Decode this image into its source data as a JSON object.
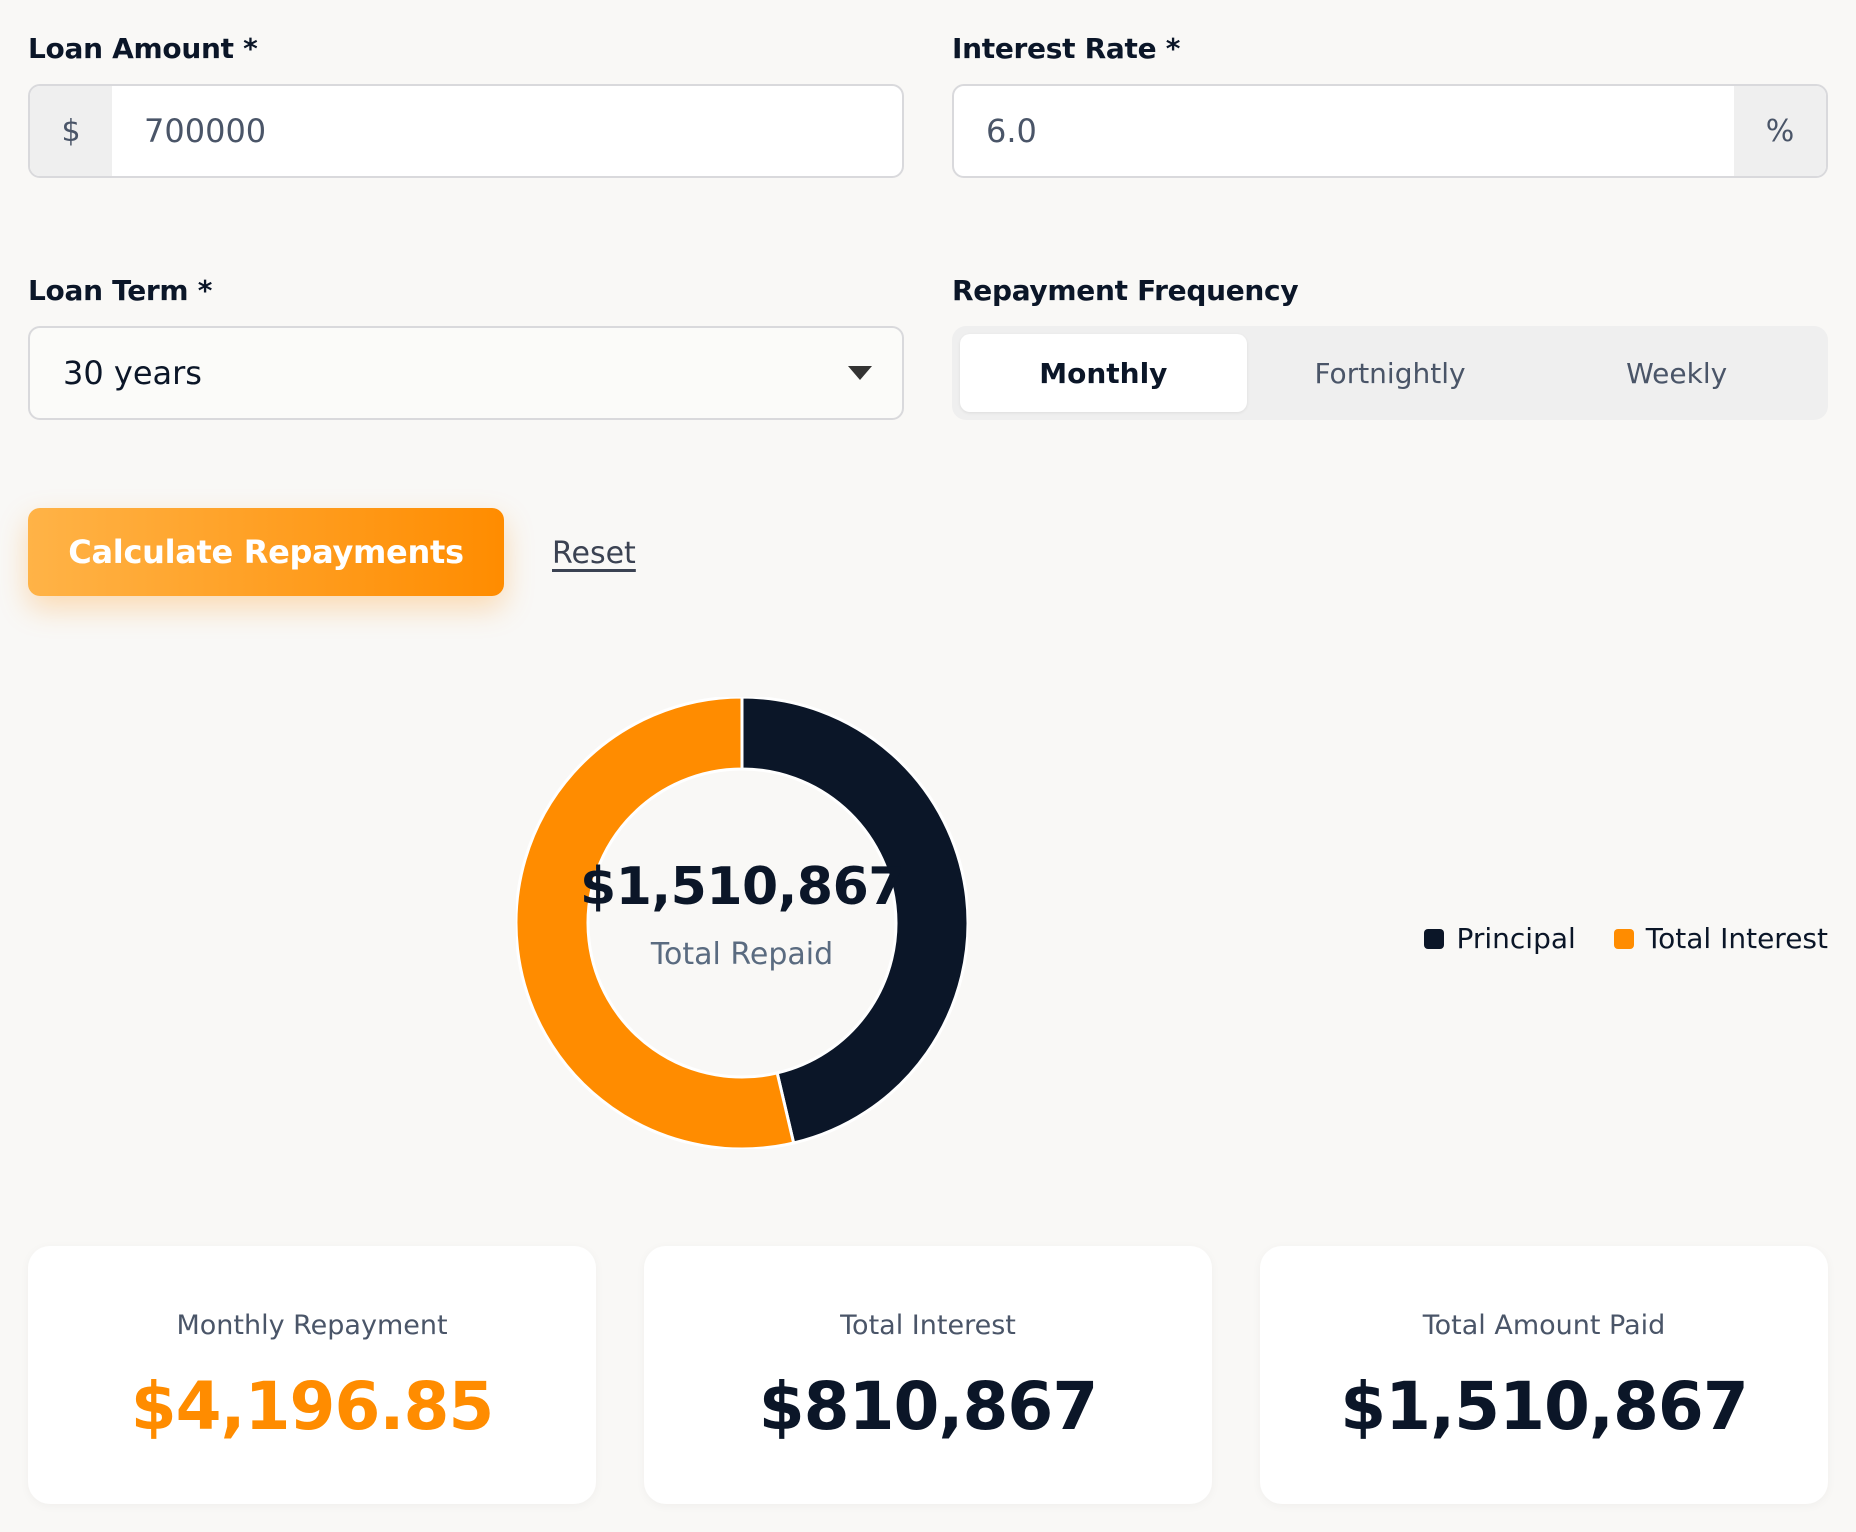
{
  "loan_amount": {
    "label": "Loan Amount *",
    "prefix": "$",
    "value": "700000"
  },
  "interest_rate": {
    "label": "Interest Rate *",
    "value": "6.0",
    "suffix": "%"
  },
  "loan_term": {
    "label": "Loan Term *",
    "selected": "30 years"
  },
  "frequency": {
    "label": "Repayment Frequency",
    "options": [
      "Monthly",
      "Fortnightly",
      "Weekly"
    ],
    "active": "Monthly"
  },
  "actions": {
    "calculate_label": "Calculate Repayments",
    "reset_label": "Reset"
  },
  "chart_data": {
    "type": "pie",
    "center_value": "$1,510,867",
    "center_label": "Total Repaid",
    "slices": [
      {
        "name": "Principal",
        "value": 700000,
        "color": "#0b1628"
      },
      {
        "name": "Total Interest",
        "value": 810867,
        "color": "#ff8c00"
      }
    ]
  },
  "summary": {
    "monthly_label": "Monthly Repayment",
    "monthly_value": "$4,196.85",
    "interest_label": "Total Interest",
    "interest_value": "$810,867",
    "total_label": "Total Amount Paid",
    "total_value": "$1,510,867"
  },
  "colors": {
    "accent": "#ff8c00",
    "navy": "#0b1628",
    "background": "#f9f8f6"
  }
}
